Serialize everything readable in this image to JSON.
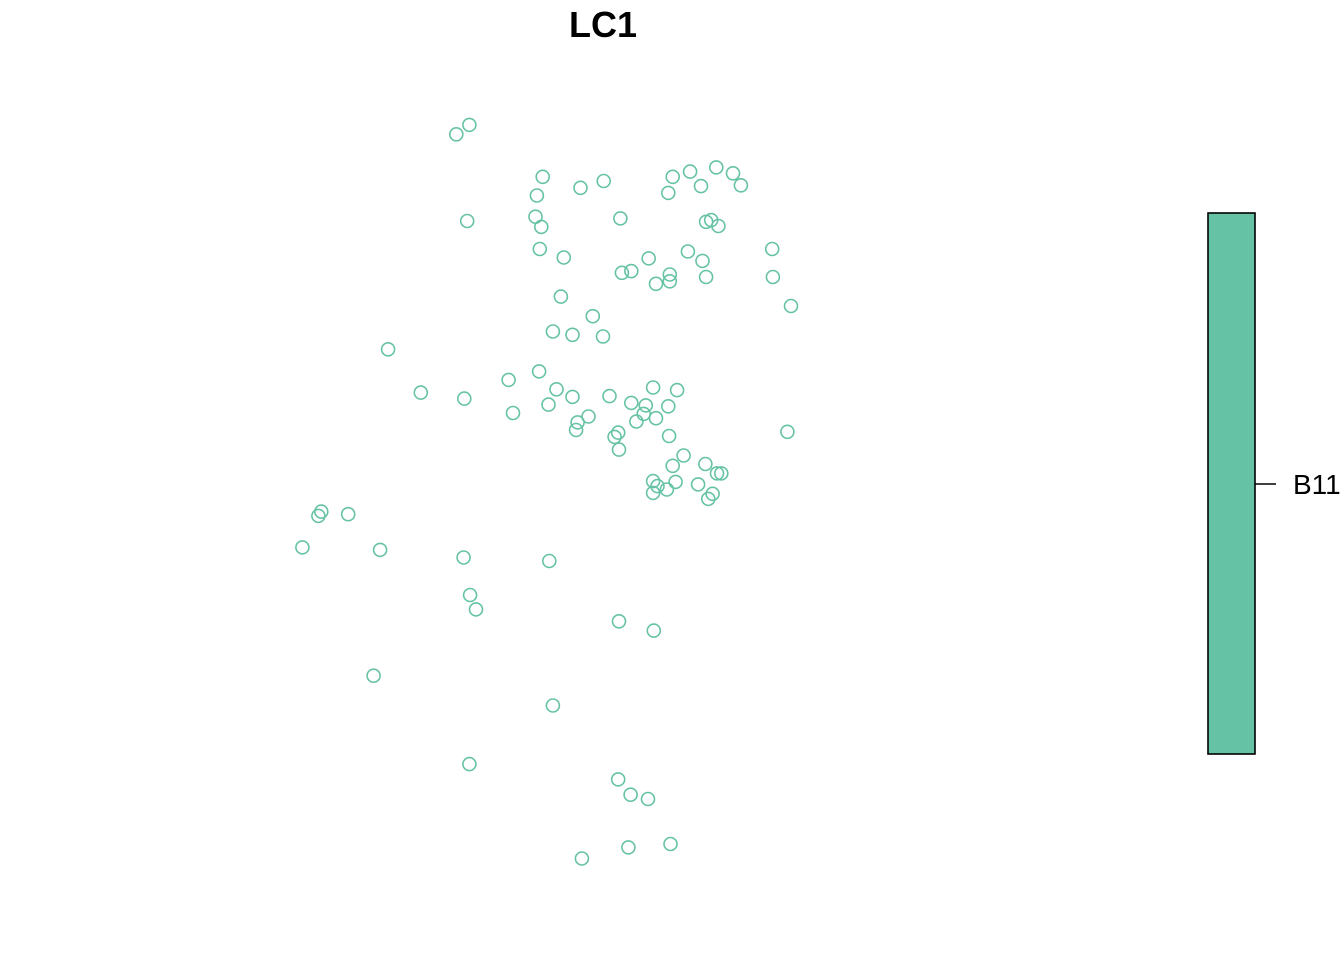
{
  "chart_data": {
    "type": "scatter",
    "title": "LC1",
    "xlabel": "",
    "ylabel": "",
    "xlim": [
      0,
      100
    ],
    "ylim": [
      0,
      100
    ],
    "grid": false,
    "axes_visible": false,
    "legend": {
      "placement": "right",
      "entries": [
        {
          "label": "B11",
          "color": "#66c2a5"
        }
      ]
    },
    "series": [
      {
        "color": "#66c2a5",
        "marker": "open-circle",
        "points": [
          [
            29.8,
            91.5
          ],
          [
            31.6,
            92.6
          ],
          [
            31.3,
            81.3
          ],
          [
            41.7,
            86.5
          ],
          [
            46.9,
            85.2
          ],
          [
            50.1,
            86.0
          ],
          [
            40.9,
            84.3
          ],
          [
            40.7,
            81.8
          ],
          [
            41.5,
            80.6
          ],
          [
            41.3,
            78.0
          ],
          [
            44.6,
            77.0
          ],
          [
            52.4,
            81.6
          ],
          [
            59.0,
            84.6
          ],
          [
            63.5,
            85.4
          ],
          [
            59.6,
            86.5
          ],
          [
            62.0,
            87.1
          ],
          [
            65.6,
            87.6
          ],
          [
            67.9,
            86.9
          ],
          [
            69.0,
            85.5
          ],
          [
            64.9,
            81.4
          ],
          [
            64.2,
            81.2
          ],
          [
            65.9,
            80.7
          ],
          [
            53.9,
            75.4
          ],
          [
            52.6,
            75.2
          ],
          [
            57.3,
            73.9
          ],
          [
            56.3,
            76.9
          ],
          [
            59.2,
            75.0
          ],
          [
            61.7,
            77.7
          ],
          [
            63.7,
            76.6
          ],
          [
            59.2,
            74.2
          ],
          [
            64.2,
            74.7
          ],
          [
            73.3,
            78.0
          ],
          [
            73.4,
            74.7
          ],
          [
            75.9,
            71.3
          ],
          [
            44.2,
            72.4
          ],
          [
            48.6,
            70.1
          ],
          [
            20.4,
            66.2
          ],
          [
            37.0,
            62.6
          ],
          [
            43.1,
            68.3
          ],
          [
            45.8,
            67.9
          ],
          [
            50.0,
            67.7
          ],
          [
            41.2,
            63.6
          ],
          [
            37.6,
            58.7
          ],
          [
            30.9,
            60.4
          ],
          [
            24.9,
            61.1
          ],
          [
            42.5,
            59.7
          ],
          [
            43.6,
            61.5
          ],
          [
            45.8,
            60.6
          ],
          [
            46.5,
            57.6
          ],
          [
            46.3,
            56.7
          ],
          [
            48.0,
            58.3
          ],
          [
            52.2,
            54.4
          ],
          [
            51.6,
            55.9
          ],
          [
            52.1,
            56.4
          ],
          [
            50.9,
            60.7
          ],
          [
            54.6,
            57.7
          ],
          [
            55.6,
            58.6
          ],
          [
            53.9,
            59.9
          ],
          [
            56.9,
            61.7
          ],
          [
            55.9,
            59.6
          ],
          [
            57.3,
            58.1
          ],
          [
            59.0,
            59.5
          ],
          [
            60.2,
            61.4
          ],
          [
            59.1,
            56.0
          ],
          [
            59.6,
            52.5
          ],
          [
            61.1,
            53.7
          ],
          [
            64.1,
            52.7
          ],
          [
            64.5,
            48.6
          ],
          [
            65.1,
            49.2
          ],
          [
            65.7,
            51.6
          ],
          [
            66.3,
            51.6
          ],
          [
            75.4,
            56.5
          ],
          [
            10.8,
            46.6
          ],
          [
            11.2,
            47.1
          ],
          [
            14.9,
            46.8
          ],
          [
            8.6,
            42.9
          ],
          [
            19.3,
            42.6
          ],
          [
            30.8,
            41.7
          ],
          [
            42.6,
            41.3
          ],
          [
            31.7,
            37.3
          ],
          [
            32.5,
            35.6
          ],
          [
            52.2,
            34.2
          ],
          [
            57.0,
            33.1
          ],
          [
            18.4,
            27.8
          ],
          [
            43.1,
            24.3
          ],
          [
            31.6,
            17.4
          ],
          [
            52.1,
            15.6
          ],
          [
            53.8,
            13.8
          ],
          [
            56.2,
            13.3
          ],
          [
            47.1,
            6.3
          ],
          [
            53.5,
            7.6
          ],
          [
            59.3,
            8.0
          ],
          [
            56.9,
            49.3
          ],
          [
            57.5,
            50.1
          ],
          [
            58.8,
            49.7
          ],
          [
            60.0,
            50.6
          ],
          [
            56.9,
            50.7
          ],
          [
            63.1,
            50.3
          ]
        ]
      }
    ]
  }
}
